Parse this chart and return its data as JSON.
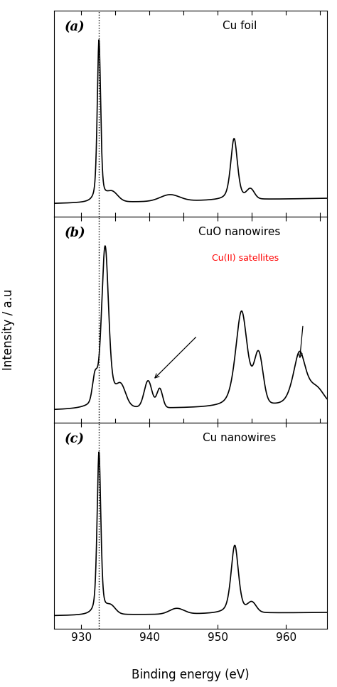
{
  "xlim": [
    926,
    966
  ],
  "xticks": [
    930,
    940,
    950,
    960
  ],
  "xlabel": "Binding energy (eV)",
  "ylabel": "Intensity / a.u",
  "vline_x": 932.6,
  "panels": [
    {
      "label": "(a)",
      "title": "Cu foil",
      "title_color": "black"
    },
    {
      "label": "(b)",
      "title": "CuO nanowires",
      "title_color": "black",
      "annotation_text": "Cu(II) satellites",
      "annotation_color": "red"
    },
    {
      "label": "(c)",
      "title": "Cu nanowires",
      "title_color": "black"
    }
  ],
  "line_color": "black",
  "line_width": 1.2
}
